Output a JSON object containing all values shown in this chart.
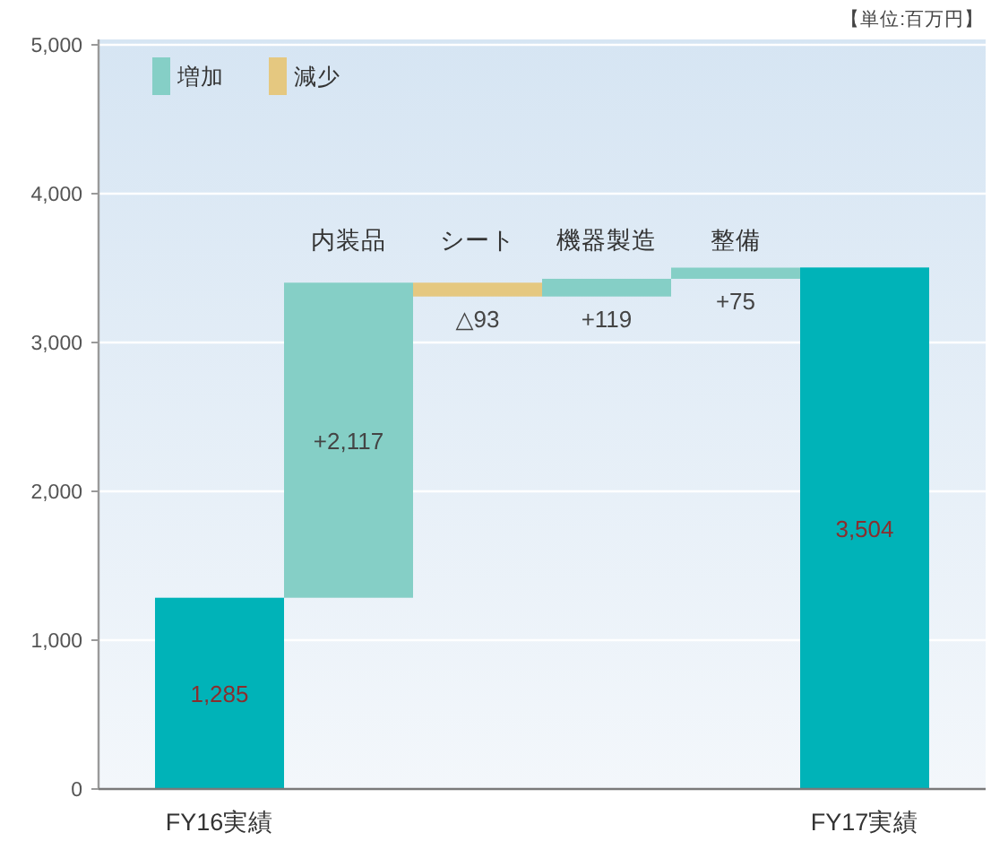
{
  "chart_data": {
    "type": "bar",
    "categories": [
      "FY16実績",
      "内装品",
      "シート",
      "機器製造",
      "整備",
      "FY17実績"
    ],
    "series": [
      {
        "color": "#00b3b8",
        "base": [
          0,
          null,
          null,
          null,
          null,
          0
        ],
        "values": [
          1285,
          null,
          null,
          null,
          null,
          3504
        ],
        "value_labels": [
          "1,285",
          null,
          null,
          null,
          null,
          "3,504"
        ]
      },
      {
        "name": "増加",
        "color": "#85cfc6",
        "base": [
          null,
          1285,
          null,
          3309,
          3428,
          null
        ],
        "values": [
          null,
          2117,
          null,
          119,
          75,
          null
        ],
        "value_labels": [
          null,
          "+2,117",
          null,
          "+119",
          "+75",
          null
        ]
      },
      {
        "name": "減少",
        "color": "#e5c880",
        "base": [
          null,
          null,
          3402,
          null,
          null,
          null
        ],
        "values": [
          null,
          null,
          -93,
          null,
          null,
          null
        ],
        "value_labels": [
          null,
          null,
          "△93",
          null,
          null,
          null
        ]
      }
    ],
    "ylim": [
      0,
      5000
    ],
    "yticks": [
      0,
      {
        "value": 1000,
        "label": "1,000"
      },
      {
        "value": 2000,
        "label": "2,000"
      },
      {
        "value": 3000,
        "label": "3,000"
      },
      {
        "value": 4000,
        "label": "4,000"
      },
      {
        "value": 5000,
        "label": "5,000"
      }
    ],
    "grid": "y",
    "legend": "top left",
    "annotations": [
      "【単位:百万円】"
    ]
  }
}
